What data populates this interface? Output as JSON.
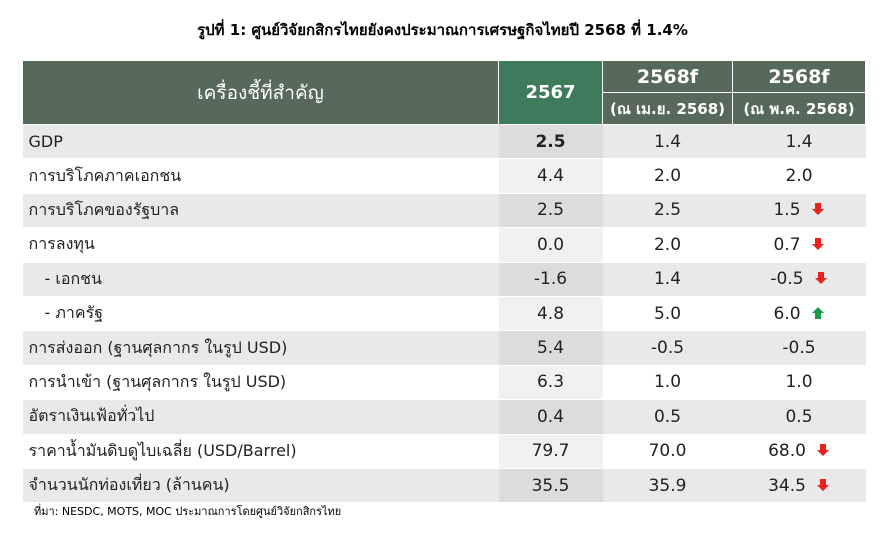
{
  "title": "รูปที่ 1: ศูนย์วิจัยกสิกรไทยยังคงประมาณการเศรษฐกิจไทยปี 2568 ที่ 1.4%",
  "header": {
    "label": "เครื่องชี้ที่สำคัญ",
    "col_2567": "2567",
    "col_2568f_a": "2568f",
    "col_2568f_a_sub": "(ณ เม.ย. 2568)",
    "col_2568f_b": "2568f",
    "col_2568f_b_sub": "(ณ พ.ค. 2568)"
  },
  "colors": {
    "header_bg": "#56695a",
    "header_2567_bg": "#3e7b5a",
    "arrow_down": "#e8231d",
    "arrow_up": "#1a9a46"
  },
  "rows": [
    {
      "label": "GDP",
      "v2567": "2.5",
      "apr": "1.4",
      "may": "1.4",
      "arrow": ""
    },
    {
      "label": "การบริโภคภาคเอกชน",
      "v2567": "4.4",
      "apr": "2.0",
      "may": "2.0",
      "arrow": ""
    },
    {
      "label": "การบริโภคของรัฐบาล",
      "v2567": "2.5",
      "apr": "2.5",
      "may": "1.5",
      "arrow": "down"
    },
    {
      "label": "การลงทุน",
      "v2567": "0.0",
      "apr": "2.0",
      "may": "0.7",
      "arrow": "down"
    },
    {
      "label": "- เอกชน",
      "v2567": "-1.6",
      "apr": "1.4",
      "may": "-0.5",
      "arrow": "down"
    },
    {
      "label": "- ภาครัฐ",
      "v2567": "4.8",
      "apr": "5.0",
      "may": "6.0",
      "arrow": "up"
    },
    {
      "label": "การส่งออก (ฐานศุลกากร ในรูป USD)",
      "v2567": "5.4",
      "apr": "-0.5",
      "may": "-0.5",
      "arrow": ""
    },
    {
      "label": "การนำเข้า (ฐานศุลกากร ในรูป USD)",
      "v2567": "6.3",
      "apr": "1.0",
      "may": "1.0",
      "arrow": ""
    },
    {
      "label": "อัตราเงินเฟ้อทั่วไป",
      "v2567": "0.4",
      "apr": "0.5",
      "may": "0.5",
      "arrow": ""
    },
    {
      "label": "ราคาน้ำมันดิบดูไบเฉลี่ย (USD/Barrel)",
      "v2567": "79.7",
      "apr": "70.0",
      "may": "68.0",
      "arrow": "down"
    },
    {
      "label": "จำนวนนักท่องเที่ยว (ล้านคน)",
      "v2567": "35.5",
      "apr": "35.9",
      "may": "34.5",
      "arrow": "down"
    }
  ],
  "source": "ที่มา: NESDC, MOTS, MOC ประมาณการโดยศูนย์วิจัยกสิกรไทย"
}
